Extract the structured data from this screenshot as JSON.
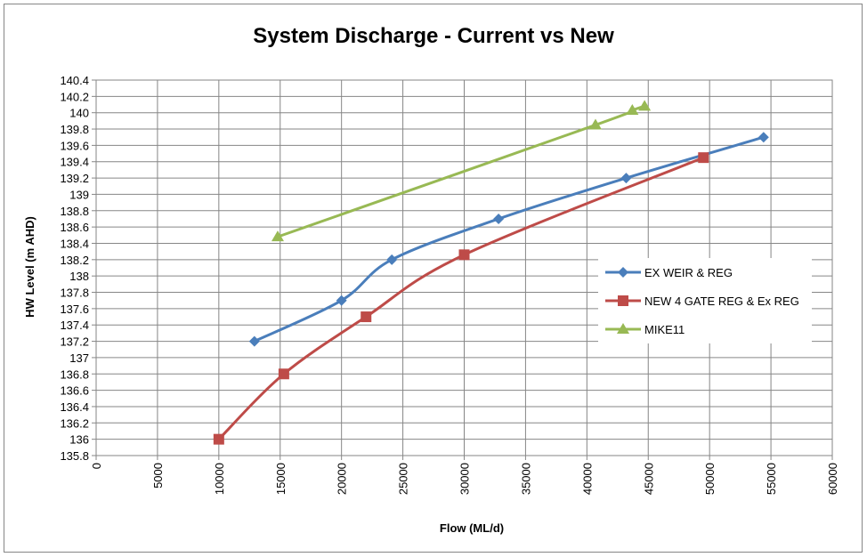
{
  "chart_data": {
    "type": "line",
    "title": "System Discharge - Current vs New",
    "x_label": "Flow (ML/d)",
    "y_label": "HW Level (m AHD)",
    "xlim": [
      0,
      60000
    ],
    "xticks": [
      0,
      5000,
      10000,
      15000,
      20000,
      25000,
      30000,
      35000,
      40000,
      45000,
      50000,
      55000,
      60000
    ],
    "ylim": [
      135.8,
      140.4
    ],
    "yticks": [
      135.8,
      136,
      136.2,
      136.4,
      136.6,
      136.8,
      137,
      137.2,
      137.4,
      137.6,
      137.8,
      138,
      138.2,
      138.4,
      138.6,
      138.8,
      139,
      139.2,
      139.4,
      139.6,
      139.8,
      140,
      140.2,
      140.4
    ],
    "grid": true,
    "smooth": true,
    "legend": "right",
    "series": [
      {
        "name": "EX WEIR & REG",
        "color": "#4a7ebb",
        "marker": "diamond",
        "x": [
          12900,
          20000,
          24100,
          32800,
          43200,
          54400
        ],
        "values": [
          137.2,
          137.7,
          138.2,
          138.7,
          139.2,
          139.7
        ]
      },
      {
        "name": "NEW 4 GATE REG & Ex REG",
        "color": "#be4b48",
        "marker": "square",
        "x": [
          10000,
          15300,
          22000,
          30000,
          49500
        ],
        "values": [
          136,
          136.8,
          137.5,
          138.26,
          139.45
        ]
      },
      {
        "name": "MIKE11",
        "color": "#98b954",
        "marker": "triangle",
        "x": [
          14800,
          40700,
          43700,
          44700
        ],
        "values": [
          138.48,
          139.85,
          140.03,
          140.08
        ]
      }
    ]
  }
}
